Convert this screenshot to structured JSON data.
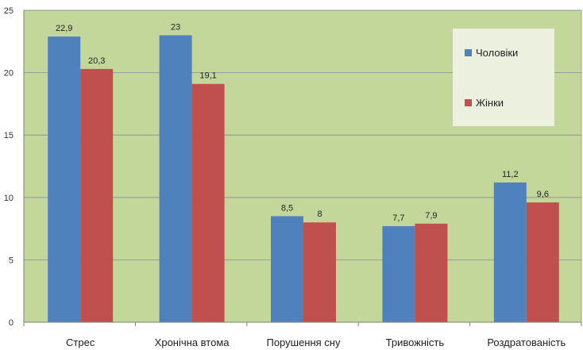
{
  "chart_data": {
    "type": "bar",
    "categories": [
      "Стрес",
      "Хронічна втома",
      "Порушення сну",
      "Тривожність",
      "Роздратованість"
    ],
    "series": [
      {
        "name": "Чоловіки",
        "values": [
          22.9,
          23,
          8.5,
          7.7,
          11.2
        ],
        "labels": [
          "22,9",
          "23",
          "8,5",
          "7,7",
          "11,2"
        ],
        "color": "#4f81bd"
      },
      {
        "name": "Жінки",
        "values": [
          20.3,
          19.1,
          8,
          7.9,
          9.6
        ],
        "labels": [
          "20,3",
          "19,1",
          "8",
          "7,9",
          "9,6"
        ],
        "color": "#c0504d"
      }
    ],
    "ylim": [
      0,
      25
    ],
    "yticks": [
      0,
      5,
      10,
      15,
      20,
      25
    ],
    "grid": true,
    "legend": "top-right",
    "plot_background": "#c4d79b",
    "legend_background": "#ebf1de"
  }
}
